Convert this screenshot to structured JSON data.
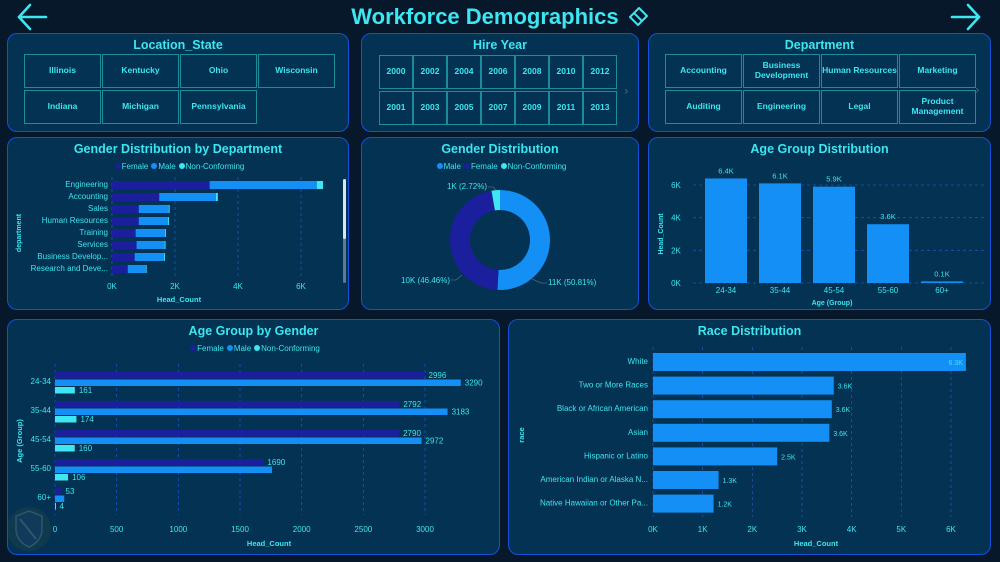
{
  "header": {
    "title": "Workforce Demographics",
    "back_icon": "arrow-left-icon",
    "forward_icon": "arrow-right-icon",
    "title_icon": "eraser-icon"
  },
  "colors": {
    "female": "#1b1f9e",
    "male": "#138ff5",
    "non_conforming": "#3de6f0",
    "panel_bg": "#043252",
    "panel_border": "#1550d8",
    "text": "#3de6f0"
  },
  "slicers": {
    "location": {
      "title": "Location_State",
      "items": [
        "Illinois",
        "Kentucky",
        "Ohio",
        "Wisconsin",
        "Indiana",
        "Michigan",
        "Pennsylvania"
      ]
    },
    "hire_year": {
      "title": "Hire Year",
      "items": [
        "2000",
        "2002",
        "2004",
        "2006",
        "2008",
        "2010",
        "2012",
        "2001",
        "2003",
        "2005",
        "2007",
        "2009",
        "2011",
        "2013"
      ],
      "more_icon": "chevron-right-icon"
    },
    "department": {
      "title": "Department",
      "items": [
        "Accounting",
        "Business Development",
        "Human Resources",
        "Marketing",
        "Auditing",
        "Engineering",
        "Legal",
        "Product Management"
      ],
      "more_icon": "chevron-right-icon"
    }
  },
  "legends": {
    "gender_fmn": [
      "Female",
      "Male",
      "Non-Conforming"
    ],
    "gender_mfn": [
      "Male",
      "Female",
      "Non-Conforming"
    ]
  },
  "chart_data": [
    {
      "id": "gender_by_department",
      "type": "bar",
      "orientation": "horizontal",
      "stacked": true,
      "title": "Gender Distribution by Department",
      "xlabel": "Head_Count",
      "ylabel": "department",
      "xlim": [
        0,
        7000
      ],
      "xticks": [
        "0K",
        "2K",
        "4K",
        "6K"
      ],
      "xtick_values": [
        0,
        2000,
        4000,
        6000
      ],
      "legend": "top",
      "grid": true,
      "categories": [
        "Engineering",
        "Accounting",
        "Sales",
        "Human Resources",
        "Training",
        "Services",
        "Business Develop...",
        "Research and Deve..."
      ],
      "series": [
        {
          "name": "Female",
          "values": [
            3100,
            1500,
            850,
            850,
            750,
            780,
            720,
            500
          ]
        },
        {
          "name": "Male",
          "values": [
            3400,
            1800,
            950,
            930,
            930,
            890,
            930,
            580
          ]
        },
        {
          "name": "Non-Conforming",
          "values": [
            200,
            60,
            30,
            30,
            30,
            30,
            30,
            20
          ]
        }
      ]
    },
    {
      "id": "gender_distribution",
      "type": "pie",
      "donut": true,
      "title": "Gender Distribution",
      "legend": "top",
      "categories": [
        "Male",
        "Female",
        "Non-Conforming"
      ],
      "values": [
        50.81,
        46.46,
        2.72
      ],
      "labels": [
        "11K (50.81%)",
        "10K (46.46%)",
        "1K (2.72%)"
      ]
    },
    {
      "id": "age_group_distribution",
      "type": "bar",
      "title": "Age Group Distribution",
      "xlabel": "Age (Group)",
      "ylabel": "Head_Count",
      "ylim": [
        0,
        7000
      ],
      "yticks": [
        "0K",
        "2K",
        "4K",
        "6K"
      ],
      "ytick_values": [
        0,
        2000,
        4000,
        6000
      ],
      "grid": true,
      "categories": [
        "24-34",
        "35-44",
        "45-54",
        "55-60",
        "60+"
      ],
      "values": [
        6400,
        6100,
        5900,
        3600,
        100
      ],
      "data_labels": [
        "6.4K",
        "6.1K",
        "5.9K",
        "3.6K",
        "0.1K"
      ]
    },
    {
      "id": "age_group_by_gender",
      "type": "bar",
      "orientation": "horizontal",
      "stacked": false,
      "title": "Age Group by Gender",
      "xlabel": "Head_Count",
      "ylabel": "Age (Group)",
      "xlim": [
        0,
        3400
      ],
      "xticks": [
        "0",
        "500",
        "1000",
        "1500",
        "2000",
        "2500",
        "3000"
      ],
      "xtick_values": [
        0,
        500,
        1000,
        1500,
        2000,
        2500,
        3000
      ],
      "legend": "top",
      "grid": true,
      "categories": [
        "24-34",
        "35-44",
        "45-54",
        "55-60",
        "60+"
      ],
      "series": [
        {
          "name": "Female",
          "values": [
            2996,
            2792,
            2790,
            1690,
            53
          ]
        },
        {
          "name": "Male",
          "values": [
            3290,
            3183,
            2972,
            1760,
            75
          ],
          "labels_visible": [
            true,
            true,
            true,
            false,
            false
          ]
        },
        {
          "name": "Non-Conforming",
          "values": [
            161,
            174,
            160,
            106,
            4
          ]
        }
      ]
    },
    {
      "id": "race_distribution",
      "type": "bar",
      "orientation": "horizontal",
      "title": "Race Distribution",
      "xlabel": "Head_Count",
      "ylabel": "race",
      "xlim": [
        0,
        6300
      ],
      "xticks": [
        "0K",
        "1K",
        "2K",
        "3K",
        "4K",
        "5K",
        "6K"
      ],
      "xtick_values": [
        0,
        1000,
        2000,
        3000,
        4000,
        5000,
        6000
      ],
      "grid": true,
      "categories": [
        "White",
        "Two or More Races",
        "Black or African American",
        "Asian",
        "Hispanic or Latino",
        "American Indian or Alaska N...",
        "Native Hawaiian or Other Pa..."
      ],
      "values": [
        6300,
        3640,
        3600,
        3550,
        2500,
        1320,
        1220
      ],
      "data_labels": [
        "6.3K",
        "3.6K",
        "3.6K",
        "3.6K",
        "2.5K",
        "1.3K",
        "1.2K"
      ]
    }
  ]
}
